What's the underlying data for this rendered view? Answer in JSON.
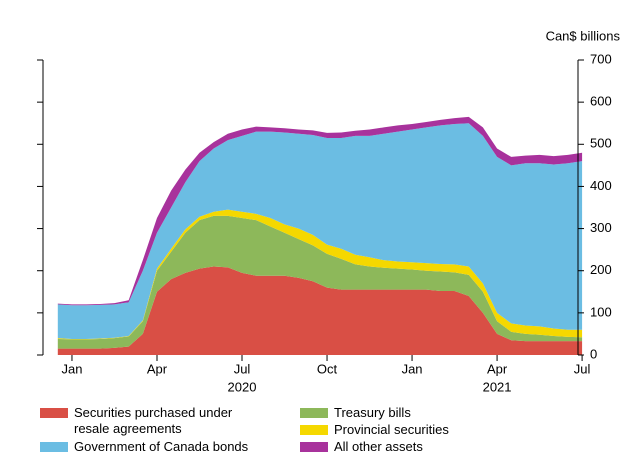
{
  "chart_data": {
    "type": "stacked-area",
    "y_unit_label": "Can$ billions",
    "categories": [
      null,
      "Jan",
      null,
      null,
      null,
      null,
      null,
      "Apr",
      null,
      null,
      null,
      null,
      null,
      "Jul",
      null,
      null,
      null,
      null,
      null,
      "Oct",
      null,
      null,
      null,
      null,
      null,
      "Jan",
      null,
      null,
      null,
      null,
      null,
      "Apr",
      null,
      null,
      null,
      null,
      null,
      "Jul"
    ],
    "x_year_labels": [
      null,
      null,
      null,
      null,
      null,
      null,
      null,
      null,
      null,
      null,
      null,
      null,
      null,
      "2020",
      null,
      null,
      null,
      null,
      null,
      null,
      null,
      null,
      null,
      null,
      null,
      null,
      null,
      null,
      null,
      null,
      null,
      "2021",
      null,
      null,
      null,
      null,
      null,
      null
    ],
    "ylim": [
      0,
      700
    ],
    "yticks": [
      0,
      100,
      200,
      300,
      400,
      500,
      600,
      700
    ],
    "series": [
      {
        "name": "Securities purchased under resale agreements",
        "color": "#d94f45",
        "values": [
          15,
          15,
          15,
          15,
          17,
          20,
          50,
          150,
          180,
          195,
          205,
          210,
          208,
          195,
          188,
          188,
          188,
          183,
          175,
          160,
          155,
          155,
          155,
          155,
          155,
          155,
          155,
          152,
          152,
          140,
          100,
          50,
          35,
          33,
          33,
          33,
          33,
          33
        ]
      },
      {
        "name": "Treasury bills",
        "color": "#8db85a",
        "values": [
          23,
          22,
          22,
          23,
          23,
          24,
          30,
          50,
          65,
          95,
          115,
          120,
          122,
          130,
          132,
          117,
          102,
          92,
          85,
          80,
          73,
          60,
          55,
          52,
          50,
          48,
          45,
          46,
          44,
          50,
          50,
          30,
          20,
          17,
          15,
          12,
          10,
          9
        ]
      },
      {
        "name": "Provincial securities",
        "color": "#f5d800",
        "values": [
          2,
          1,
          1,
          1,
          1,
          1,
          2,
          5,
          7,
          8,
          8,
          10,
          15,
          15,
          15,
          20,
          20,
          25,
          25,
          22,
          24,
          23,
          22,
          18,
          17,
          17,
          18,
          18,
          19,
          20,
          20,
          20,
          20,
          20,
          20,
          18,
          17,
          18
        ]
      },
      {
        "name": "Government of Canada bonds",
        "color": "#6bbde3",
        "values": [
          80,
          80,
          80,
          80,
          79,
          80,
          118,
          85,
          98,
          112,
          132,
          150,
          165,
          180,
          195,
          205,
          218,
          225,
          237,
          253,
          263,
          282,
          288,
          300,
          308,
          315,
          322,
          329,
          333,
          340,
          350,
          370,
          375,
          385,
          387,
          389,
          395,
          400
        ]
      },
      {
        "name": "All other assets",
        "color": "#a8329c",
        "values": [
          2,
          2,
          2,
          2,
          3,
          5,
          25,
          35,
          40,
          30,
          20,
          15,
          15,
          15,
          12,
          10,
          10,
          10,
          11,
          12,
          13,
          12,
          15,
          15,
          15,
          13,
          13,
          13,
          14,
          15,
          20,
          20,
          20,
          18,
          20,
          20,
          20,
          20
        ]
      }
    ]
  }
}
